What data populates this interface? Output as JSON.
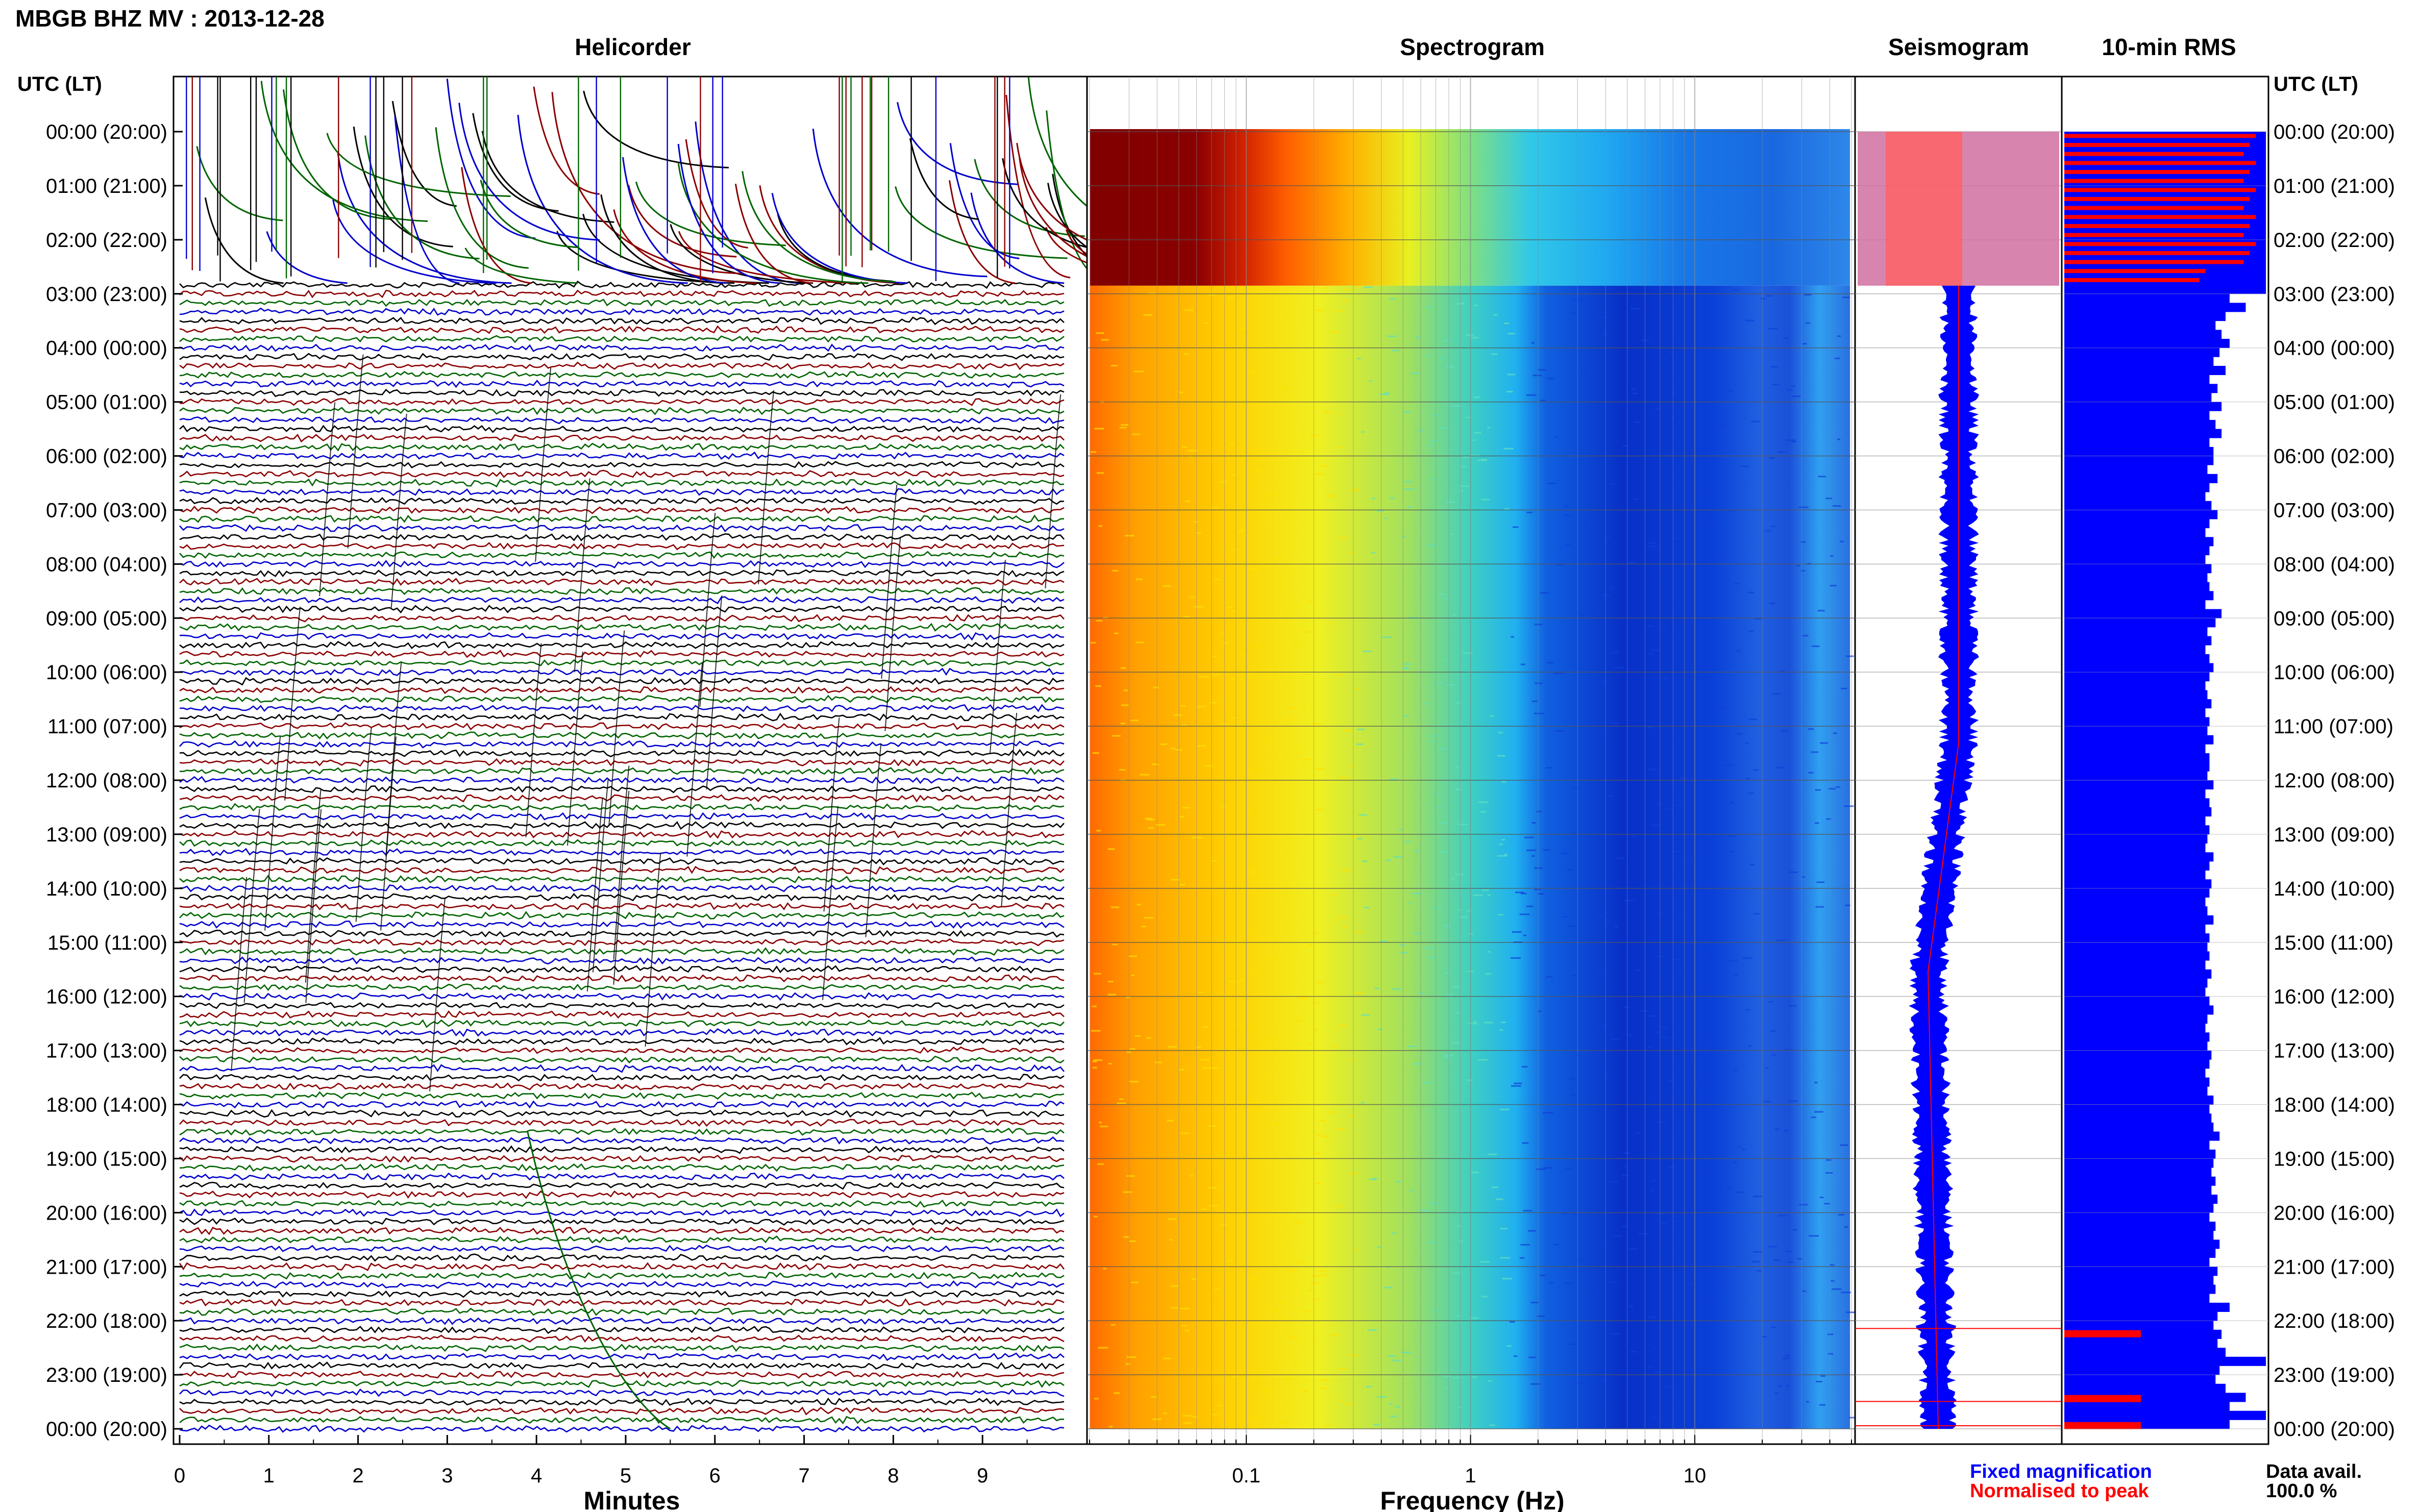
{
  "title": "MBGB BHZ MV : 2013-12-28",
  "panels": {
    "helicorder": "Helicorder",
    "spectrogram": "Spectrogram",
    "seismogram": "Seismogram",
    "rms": "10-min RMS"
  },
  "left_axis_title": "UTC (LT)",
  "right_axis_title": "UTC (LT)",
  "time_ticks": [
    "00:00 (20:00)",
    "01:00 (21:00)",
    "02:00 (22:00)",
    "03:00 (23:00)",
    "04:00 (00:00)",
    "05:00 (01:00)",
    "06:00 (02:00)",
    "07:00 (03:00)",
    "08:00 (04:00)",
    "09:00 (05:00)",
    "10:00 (06:00)",
    "11:00 (07:00)",
    "12:00 (08:00)",
    "13:00 (09:00)",
    "14:00 (10:00)",
    "15:00 (11:00)",
    "16:00 (12:00)",
    "17:00 (13:00)",
    "18:00 (14:00)",
    "19:00 (15:00)",
    "20:00 (16:00)",
    "21:00 (17:00)",
    "22:00 (18:00)",
    "23:00 (19:00)",
    "00:00 (20:00)"
  ],
  "helicorder_xlabel": "Minutes",
  "helicorder_ticks": [
    "0",
    "1",
    "2",
    "3",
    "4",
    "5",
    "6",
    "7",
    "8",
    "9"
  ],
  "spectrogram_xlabel": "Frequency (Hz)",
  "spectrogram_ticks": [
    "0.1",
    "1",
    "10"
  ],
  "legend": {
    "fixed": "Fixed magnification",
    "normalised": "Normalised to peak"
  },
  "data_avail_label": "Data avail.",
  "data_avail_value": "100.0 %",
  "colors": {
    "trace_colors": [
      "#000000",
      "#8b0000",
      "#006400",
      "#0000cc"
    ],
    "rms_fixed": "#0000ff",
    "rms_normalised": "#ff0000",
    "saturated": "#800000"
  },
  "chart_data": {
    "type": "heatmap",
    "title": "MBGB BHZ MV : 2013-12-28",
    "helicorder": {
      "xlabel": "Minutes",
      "xlim": [
        0,
        10
      ],
      "rows_per_hour": 6,
      "hours": 24
    },
    "spectrogram": {
      "xlabel": "Frequency (Hz)",
      "scale": "log",
      "xlim": [
        0.02,
        50
      ]
    },
    "rms_10min": {
      "description_levels": "relative",
      "saturated_hours": [
        0,
        1,
        2
      ],
      "fixed_relative": [
        1.0,
        1.0,
        1.0,
        1.0,
        1.0,
        1.0,
        1.0,
        1.0,
        1.0,
        1.0,
        1.0,
        1.0,
        1.0,
        1.0,
        1.0,
        1.0,
        1.0,
        1.0,
        0.82,
        0.9,
        0.8,
        0.75,
        0.78,
        0.82,
        0.77,
        0.74,
        0.8,
        0.72,
        0.76,
        0.73,
        0.78,
        0.72,
        0.75,
        0.78,
        0.72,
        0.74,
        0.74,
        0.71,
        0.76,
        0.72,
        0.7,
        0.73,
        0.76,
        0.72,
        0.7,
        0.74,
        0.72,
        0.7,
        0.73,
        0.71,
        0.72,
        0.74,
        0.7,
        0.78,
        0.75,
        0.71,
        0.73,
        0.7,
        0.72,
        0.74,
        0.72,
        0.7,
        0.71,
        0.73,
        0.7,
        0.72,
        0.71,
        0.74,
        0.7,
        0.72,
        0.72,
        0.71,
        0.74,
        0.7,
        0.72,
        0.73,
        0.7,
        0.72,
        0.71,
        0.7,
        0.74,
        0.72,
        0.7,
        0.73,
        0.72,
        0.7,
        0.71,
        0.74,
        0.7,
        0.72,
        0.71,
        0.72,
        0.7,
        0.73,
        0.71,
        0.7,
        0.72,
        0.74,
        0.71,
        0.7,
        0.72,
        0.71,
        0.73,
        0.72,
        0.7,
        0.72,
        0.71,
        0.74,
        0.72,
        0.73,
        0.74,
        0.77,
        0.72,
        0.75,
        0.74,
        0.73,
        0.75,
        0.73,
        0.76,
        0.74,
        0.72,
        0.75,
        0.74,
        0.77,
        0.75,
        0.72,
        0.76,
        0.74,
        0.75,
        0.72,
        0.82,
        0.76,
        0.74,
        0.78,
        0.76,
        0.8,
        1.0,
        0.77,
        0.75,
        0.8,
        0.9,
        0.82,
        1.0,
        0.82
      ]
    }
  }
}
